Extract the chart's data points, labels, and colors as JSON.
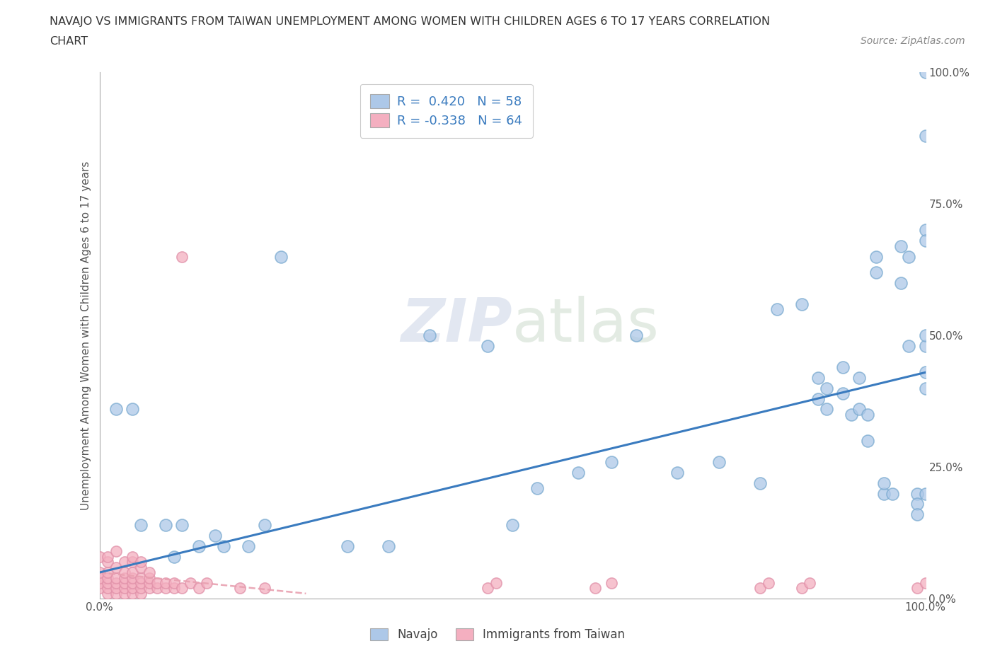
{
  "title_line1": "NAVAJO VS IMMIGRANTS FROM TAIWAN UNEMPLOYMENT AMONG WOMEN WITH CHILDREN AGES 6 TO 17 YEARS CORRELATION",
  "title_line2": "CHART",
  "source_text": "Source: ZipAtlas.com",
  "ylabel": "Unemployment Among Women with Children Ages 6 to 17 years",
  "xlim": [
    0.0,
    1.0
  ],
  "ylim": [
    0.0,
    1.0
  ],
  "xtick_positions": [
    0.0,
    0.25,
    0.5,
    0.75,
    1.0
  ],
  "xticklabels": [
    "0.0%",
    "",
    "",
    "",
    "100.0%"
  ],
  "ytick_positions": [
    0.0,
    0.25,
    0.5,
    0.75,
    1.0
  ],
  "yticklabels": [
    "0.0%",
    "25.0%",
    "50.0%",
    "75.0%",
    "100.0%"
  ],
  "watermark": "ZIPatlas",
  "navajo_R": 0.42,
  "navajo_N": 58,
  "taiwan_R": -0.338,
  "taiwan_N": 64,
  "navajo_color": "#adc8e8",
  "taiwan_color": "#f4afc0",
  "navajo_line_color": "#3a7bbf",
  "taiwan_line_color": "#e8a0b0",
  "legend_navajo_label": "Navajo",
  "legend_taiwan_label": "Immigrants from Taiwan",
  "navajo_line_x0": 0.0,
  "navajo_line_y0": 0.05,
  "navajo_line_x1": 1.0,
  "navajo_line_y1": 0.43,
  "taiwan_line_x0": 0.0,
  "taiwan_line_y0": 0.05,
  "taiwan_line_x1": 0.25,
  "taiwan_line_y1": 0.01,
  "navajo_points_x": [
    0.02,
    0.04,
    0.05,
    0.08,
    0.09,
    0.1,
    0.12,
    0.14,
    0.15,
    0.18,
    0.2,
    0.22,
    0.3,
    0.35,
    0.4,
    0.47,
    0.5,
    0.53,
    0.58,
    0.62,
    0.65,
    0.7,
    0.75,
    0.8,
    0.82,
    0.85,
    0.87,
    0.87,
    0.88,
    0.88,
    0.9,
    0.9,
    0.91,
    0.92,
    0.92,
    0.93,
    0.93,
    0.94,
    0.94,
    0.95,
    0.95,
    0.96,
    0.97,
    0.97,
    0.98,
    0.98,
    0.99,
    0.99,
    0.99,
    1.0,
    1.0,
    1.0,
    1.0,
    1.0,
    1.0,
    1.0,
    1.0,
    1.0
  ],
  "navajo_points_y": [
    0.36,
    0.36,
    0.14,
    0.14,
    0.08,
    0.14,
    0.1,
    0.12,
    0.1,
    0.1,
    0.14,
    0.65,
    0.1,
    0.1,
    0.5,
    0.48,
    0.14,
    0.21,
    0.24,
    0.26,
    0.5,
    0.24,
    0.26,
    0.22,
    0.55,
    0.56,
    0.42,
    0.38,
    0.4,
    0.36,
    0.44,
    0.39,
    0.35,
    0.42,
    0.36,
    0.3,
    0.35,
    0.65,
    0.62,
    0.2,
    0.22,
    0.2,
    0.6,
    0.67,
    0.48,
    0.65,
    0.2,
    0.18,
    0.16,
    1.0,
    0.88,
    0.7,
    0.68,
    0.48,
    0.5,
    0.43,
    0.4,
    0.2
  ],
  "taiwan_points_x": [
    0.0,
    0.0,
    0.0,
    0.0,
    0.0,
    0.01,
    0.01,
    0.01,
    0.01,
    0.01,
    0.01,
    0.01,
    0.02,
    0.02,
    0.02,
    0.02,
    0.02,
    0.02,
    0.03,
    0.03,
    0.03,
    0.03,
    0.03,
    0.03,
    0.04,
    0.04,
    0.04,
    0.04,
    0.04,
    0.04,
    0.04,
    0.05,
    0.05,
    0.05,
    0.05,
    0.05,
    0.05,
    0.06,
    0.06,
    0.06,
    0.06,
    0.07,
    0.07,
    0.08,
    0.08,
    0.09,
    0.09,
    0.1,
    0.1,
    0.11,
    0.12,
    0.13,
    0.17,
    0.2,
    0.47,
    0.48,
    0.6,
    0.62,
    0.8,
    0.81,
    0.85,
    0.86,
    0.99,
    1.0
  ],
  "taiwan_points_y": [
    0.02,
    0.03,
    0.04,
    0.05,
    0.08,
    0.01,
    0.02,
    0.03,
    0.04,
    0.05,
    0.07,
    0.08,
    0.01,
    0.02,
    0.03,
    0.04,
    0.06,
    0.09,
    0.01,
    0.02,
    0.03,
    0.04,
    0.05,
    0.07,
    0.01,
    0.02,
    0.03,
    0.04,
    0.05,
    0.07,
    0.08,
    0.01,
    0.02,
    0.03,
    0.04,
    0.06,
    0.07,
    0.02,
    0.03,
    0.04,
    0.05,
    0.02,
    0.03,
    0.02,
    0.03,
    0.02,
    0.03,
    0.02,
    0.65,
    0.03,
    0.02,
    0.03,
    0.02,
    0.02,
    0.02,
    0.03,
    0.02,
    0.03,
    0.02,
    0.03,
    0.02,
    0.03,
    0.02,
    0.03
  ]
}
